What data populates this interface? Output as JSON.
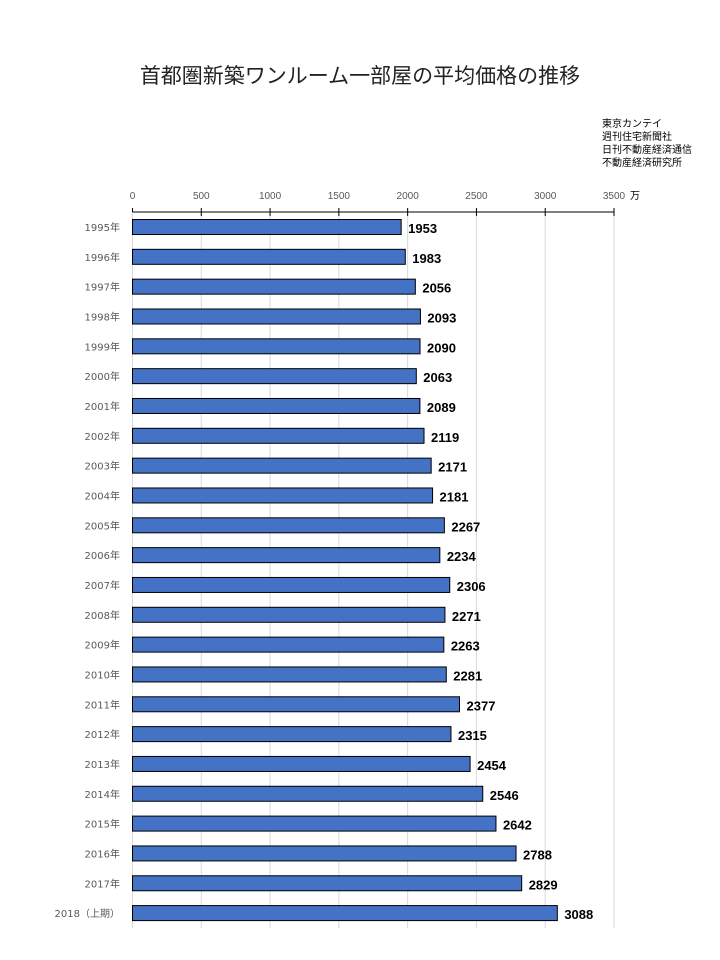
{
  "title": "首都圏新築ワンルーム一部屋の平均価格の推移",
  "sources": [
    "東京カンテイ",
    "週刊住宅新聞社",
    "日刊不動産経済通信",
    "不動産経済研究所"
  ],
  "chart_data": {
    "type": "bar",
    "orientation": "horizontal",
    "title": "首都圏新築ワンルーム一部屋の平均価格の推移",
    "unit_label": "万",
    "xlim": [
      0,
      3500
    ],
    "xticks": [
      0,
      500,
      1000,
      1500,
      2000,
      2500,
      3000,
      3500
    ],
    "grid": true,
    "categories": [
      "1995年",
      "1996年",
      "1997年",
      "1998年",
      "1999年",
      "2000年",
      "2001年",
      "2002年",
      "2003年",
      "2004年",
      "2005年",
      "2006年",
      "2007年",
      "2008年",
      "2009年",
      "2010年",
      "2011年",
      "2012年",
      "2013年",
      "2014年",
      "2015年",
      "2016年",
      "2017年",
      "2018（上期）"
    ],
    "values": [
      1953,
      1983,
      2056,
      2093,
      2090,
      2063,
      2089,
      2119,
      2171,
      2181,
      2267,
      2234,
      2306,
      2271,
      2263,
      2281,
      2377,
      2315,
      2454,
      2546,
      2642,
      2788,
      2829,
      3088
    ],
    "bar_color": "#4472c4"
  }
}
